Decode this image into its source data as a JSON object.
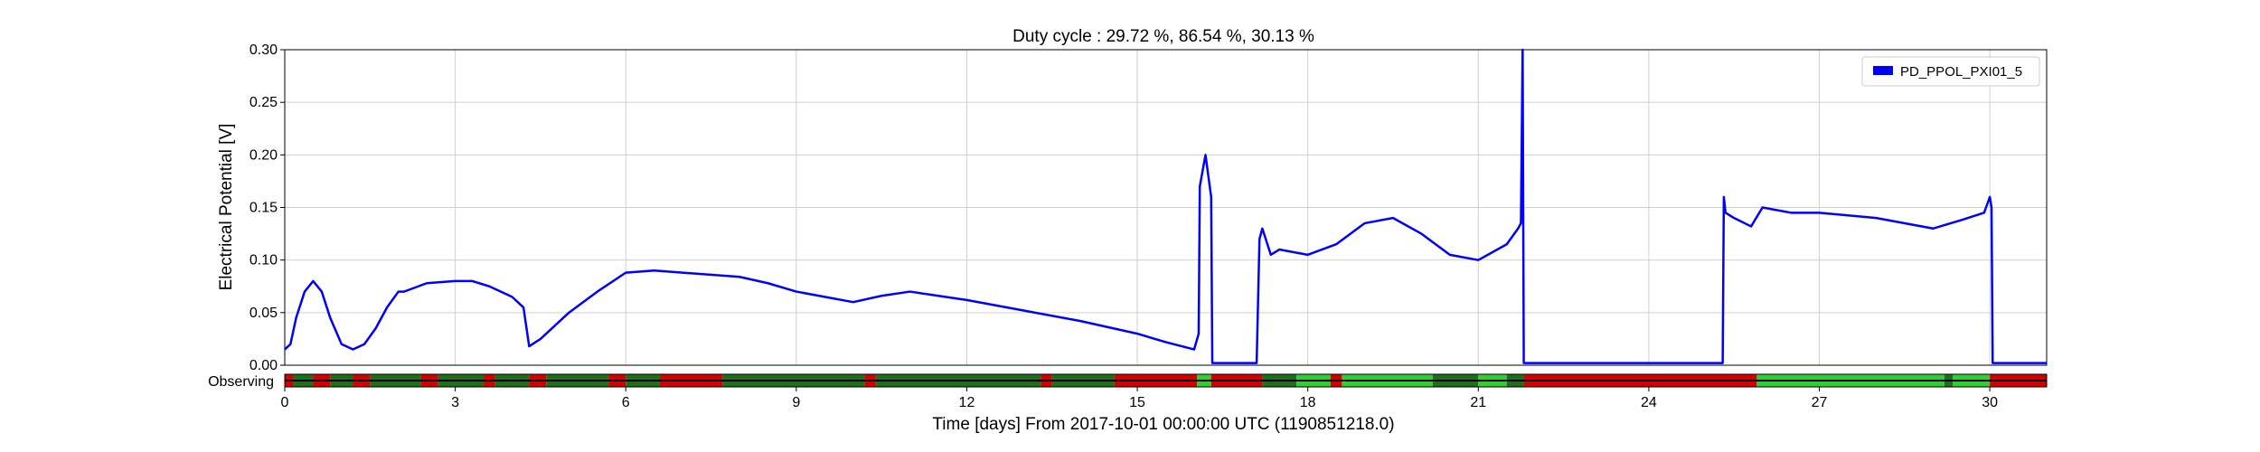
{
  "chart_data": {
    "type": "line",
    "title": "Duty cycle : 29.72 %, 86.54 %, 30.13 %",
    "xlabel": "Time [days] From 2017-10-01 00:00:00 UTC (1190851218.0)",
    "ylabel": "Electrical Potential [V]",
    "xlim": [
      0,
      31
    ],
    "ylim": [
      0,
      0.3
    ],
    "x_ticks": [
      0,
      3,
      6,
      9,
      12,
      15,
      18,
      21,
      24,
      27,
      30
    ],
    "x_tick_labels": [
      "0",
      "3",
      "6",
      "9",
      "12",
      "15",
      "18",
      "21",
      "24",
      "27",
      "30"
    ],
    "y_ticks": [
      0,
      0.05,
      0.1,
      0.15,
      0.2,
      0.25,
      0.3
    ],
    "y_tick_labels": [
      "0.00",
      "0.05",
      "0.10",
      "0.15",
      "0.20",
      "0.25",
      "0.30"
    ],
    "grid": true,
    "legend_position": "top-right",
    "colors": {
      "series": "#0000ff",
      "off": "#d40000",
      "observing_dark": "#1e6e1e",
      "observing_light": "#33cc33"
    },
    "series": [
      {
        "name": "PD_PPOL_PXI01_5",
        "x": [
          0,
          0.1,
          0.2,
          0.35,
          0.5,
          0.65,
          0.8,
          1.0,
          1.2,
          1.4,
          1.6,
          1.8,
          2.0,
          2.1,
          2.2,
          2.5,
          3.0,
          3.3,
          3.6,
          4.0,
          4.2,
          4.3,
          4.5,
          5.0,
          5.5,
          6.0,
          6.5,
          7.0,
          8.0,
          8.5,
          9.0,
          9.5,
          10.0,
          10.5,
          11.0,
          12.0,
          13.0,
          14.0,
          15.0,
          15.5,
          16.0,
          16.08,
          16.1,
          16.2,
          16.3,
          16.32,
          16.35,
          17.1,
          17.15,
          17.2,
          17.35,
          17.5,
          18.0,
          18.5,
          19.0,
          19.5,
          20.0,
          20.5,
          21.0,
          21.5,
          21.7,
          21.75,
          21.78,
          21.8,
          21.9,
          23.0,
          25.0,
          25.3,
          25.32,
          25.35,
          25.5,
          25.8,
          26.0,
          26.5,
          27.0,
          28.0,
          29.0,
          29.5,
          29.9,
          30.0,
          30.03,
          30.05,
          30.2,
          31.0
        ],
        "y": [
          0.015,
          0.02,
          0.045,
          0.07,
          0.08,
          0.07,
          0.045,
          0.02,
          0.015,
          0.02,
          0.035,
          0.055,
          0.07,
          0.07,
          0.072,
          0.078,
          0.08,
          0.08,
          0.075,
          0.065,
          0.055,
          0.018,
          0.025,
          0.05,
          0.07,
          0.088,
          0.09,
          0.088,
          0.084,
          0.078,
          0.07,
          0.065,
          0.06,
          0.066,
          0.07,
          0.062,
          0.052,
          0.042,
          0.03,
          0.022,
          0.015,
          0.03,
          0.17,
          0.2,
          0.16,
          0.002,
          0.002,
          0.002,
          0.12,
          0.13,
          0.105,
          0.11,
          0.105,
          0.115,
          0.135,
          0.14,
          0.125,
          0.105,
          0.1,
          0.115,
          0.13,
          0.135,
          0.3,
          0.002,
          0.002,
          0.002,
          0.002,
          0.002,
          0.16,
          0.145,
          0.14,
          0.132,
          0.15,
          0.145,
          0.145,
          0.14,
          0.13,
          0.138,
          0.145,
          0.16,
          0.15,
          0.002,
          0.002,
          0.002
        ]
      }
    ],
    "observing_strip": {
      "label": "Observing",
      "segments": [
        {
          "start": 0,
          "end": 0.15,
          "state": "off"
        },
        {
          "start": 0.15,
          "end": 0.5,
          "state": "observing_dark"
        },
        {
          "start": 0.5,
          "end": 0.8,
          "state": "off"
        },
        {
          "start": 0.8,
          "end": 1.2,
          "state": "observing_dark"
        },
        {
          "start": 1.2,
          "end": 1.5,
          "state": "off"
        },
        {
          "start": 1.5,
          "end": 2.4,
          "state": "observing_dark"
        },
        {
          "start": 2.4,
          "end": 2.7,
          "state": "off"
        },
        {
          "start": 2.7,
          "end": 3.5,
          "state": "observing_dark"
        },
        {
          "start": 3.5,
          "end": 3.7,
          "state": "off"
        },
        {
          "start": 3.7,
          "end": 4.3,
          "state": "observing_dark"
        },
        {
          "start": 4.3,
          "end": 4.6,
          "state": "off"
        },
        {
          "start": 4.6,
          "end": 5.7,
          "state": "observing_dark"
        },
        {
          "start": 5.7,
          "end": 6.0,
          "state": "off"
        },
        {
          "start": 6.0,
          "end": 6.6,
          "state": "observing_dark"
        },
        {
          "start": 6.6,
          "end": 7.7,
          "state": "off"
        },
        {
          "start": 7.7,
          "end": 10.2,
          "state": "observing_dark"
        },
        {
          "start": 10.2,
          "end": 10.4,
          "state": "off"
        },
        {
          "start": 10.4,
          "end": 13.3,
          "state": "observing_dark"
        },
        {
          "start": 13.3,
          "end": 13.5,
          "state": "off"
        },
        {
          "start": 13.5,
          "end": 14.6,
          "state": "observing_dark"
        },
        {
          "start": 14.6,
          "end": 16.05,
          "state": "off"
        },
        {
          "start": 16.05,
          "end": 16.3,
          "state": "observing_light"
        },
        {
          "start": 16.3,
          "end": 17.2,
          "state": "off"
        },
        {
          "start": 17.2,
          "end": 17.8,
          "state": "observing_dark"
        },
        {
          "start": 17.8,
          "end": 18.4,
          "state": "observing_light"
        },
        {
          "start": 18.4,
          "end": 18.6,
          "state": "off"
        },
        {
          "start": 18.6,
          "end": 20.2,
          "state": "observing_light"
        },
        {
          "start": 20.2,
          "end": 21.0,
          "state": "observing_dark"
        },
        {
          "start": 21.0,
          "end": 21.5,
          "state": "observing_light"
        },
        {
          "start": 21.5,
          "end": 21.8,
          "state": "observing_dark"
        },
        {
          "start": 21.8,
          "end": 25.9,
          "state": "off"
        },
        {
          "start": 25.9,
          "end": 29.2,
          "state": "observing_light"
        },
        {
          "start": 29.2,
          "end": 29.35,
          "state": "observing_dark"
        },
        {
          "start": 29.35,
          "end": 30.0,
          "state": "observing_light"
        },
        {
          "start": 30.0,
          "end": 31.0,
          "state": "off"
        }
      ]
    }
  }
}
